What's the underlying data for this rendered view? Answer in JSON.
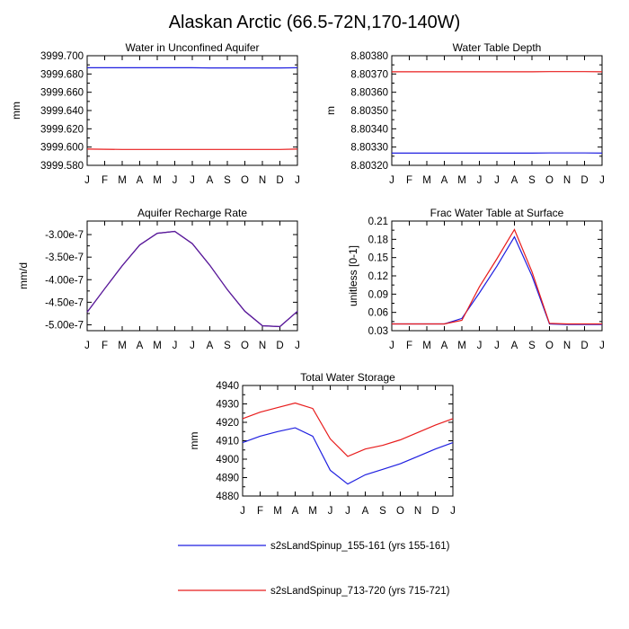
{
  "title": "Alaskan Arctic (66.5-72N,170-140W)",
  "colors": {
    "blue": "#1f1fe0",
    "red": "#e81c1c",
    "purple": "#5a1a9a",
    "axis": "#000000"
  },
  "legend": [
    {
      "label": "s2sLandSpinup_155-161 (yrs 155-161)",
      "color": "#1f1fe0"
    },
    {
      "label": "s2sLandSpinup_713-720 (yrs 715-721)",
      "color": "#e81c1c"
    }
  ],
  "chart_data": [
    {
      "id": "unconfined",
      "type": "line",
      "title": "Water in Unconfined Aquifer",
      "ylabel": "mm",
      "categories": [
        "J",
        "F",
        "M",
        "A",
        "M",
        "J",
        "J",
        "A",
        "S",
        "O",
        "N",
        "D",
        "J"
      ],
      "ylim": [
        3999.58,
        3999.7
      ],
      "yticks": [
        "3999.580",
        "3999.600",
        "3999.620",
        "3999.640",
        "3999.660",
        "3999.680",
        "3999.700"
      ],
      "series": [
        {
          "name": "s2sLandSpinup_155-161 (yrs 155-161)",
          "color": "#1f1fe0",
          "values": [
            3999.6868,
            3999.6868,
            3999.6868,
            3999.6868,
            3999.6868,
            3999.6868,
            3999.6868,
            3999.6866,
            3999.6866,
            3999.6866,
            3999.6866,
            3999.6866,
            3999.6868
          ]
        },
        {
          "name": "s2sLandSpinup_713-720 (yrs 715-721)",
          "color": "#e81c1c",
          "values": [
            3999.5978,
            3999.5976,
            3999.5974,
            3999.5974,
            3999.5974,
            3999.5974,
            3999.5974,
            3999.5974,
            3999.5974,
            3999.5974,
            3999.5974,
            3999.5974,
            3999.5978
          ]
        }
      ]
    },
    {
      "id": "depth",
      "type": "line",
      "title": "Water Table Depth",
      "ylabel": "m",
      "categories": [
        "J",
        "F",
        "M",
        "A",
        "M",
        "J",
        "J",
        "A",
        "S",
        "O",
        "N",
        "D",
        "J"
      ],
      "ylim": [
        8.8032,
        8.8038
      ],
      "yticks": [
        "8.80320",
        "8.80330",
        "8.80340",
        "8.80350",
        "8.80360",
        "8.80370",
        "8.80380"
      ],
      "series": [
        {
          "name": "s2sLandSpinup_155-161 (yrs 155-161)",
          "color": "#1f1fe0",
          "values": [
            8.803267,
            8.803267,
            8.803267,
            8.803267,
            8.803267,
            8.803267,
            8.803267,
            8.803267,
            8.803267,
            8.803268,
            8.803268,
            8.803268,
            8.803267
          ]
        },
        {
          "name": "s2sLandSpinup_713-720 (yrs 715-721)",
          "color": "#e81c1c",
          "values": [
            8.803712,
            8.803712,
            8.803712,
            8.803712,
            8.803712,
            8.803712,
            8.803712,
            8.803712,
            8.803712,
            8.803713,
            8.803713,
            8.803713,
            8.803712
          ]
        }
      ]
    },
    {
      "id": "recharge",
      "type": "line",
      "title": "Aquifer Recharge Rate",
      "ylabel": "mm/d",
      "categories": [
        "J",
        "F",
        "M",
        "A",
        "M",
        "J",
        "J",
        "A",
        "S",
        "O",
        "N",
        "D",
        "J"
      ],
      "ylim": [
        -5.13e-07,
        -2.7e-07
      ],
      "yticks": [
        "-5.00e-7",
        "-4.50e-7",
        "-4.00e-7",
        "-3.50e-7",
        "-3.00e-7"
      ],
      "ytick_values": [
        -5e-07,
        -4.5e-07,
        -4e-07,
        -3.5e-07,
        -3e-07
      ],
      "series": [
        {
          "name": "s2sLandSpinup_155-161 (yrs 155-161)",
          "color": "#1f1fe0",
          "values": [
            -4.72e-07,
            -4.2e-07,
            -3.69e-07,
            -3.23e-07,
            -2.97e-07,
            -2.93e-07,
            -3.2e-07,
            -3.68e-07,
            -4.22e-07,
            -4.7e-07,
            -5.02e-07,
            -5.04e-07,
            -4.7e-07
          ]
        },
        {
          "name": "s2sLandSpinup_713-720 (yrs 715-721)",
          "color": "#e81c1c",
          "values": [
            -4.72e-07,
            -4.2e-07,
            -3.69e-07,
            -3.23e-07,
            -2.97e-07,
            -2.93e-07,
            -3.2e-07,
            -3.68e-07,
            -4.22e-07,
            -4.7e-07,
            -5.02e-07,
            -5.04e-07,
            -4.7e-07
          ]
        }
      ]
    },
    {
      "id": "frac",
      "type": "line",
      "title": "Frac Water Table at Surface",
      "ylabel": "unitless [0-1]",
      "categories": [
        "J",
        "F",
        "M",
        "A",
        "M",
        "J",
        "J",
        "A",
        "S",
        "O",
        "N",
        "D",
        "J"
      ],
      "ylim": [
        0.03,
        0.21
      ],
      "yticks": [
        "0.03",
        "0.06",
        "0.09",
        "0.12",
        "0.15",
        "0.18",
        "0.21"
      ],
      "series": [
        {
          "name": "s2sLandSpinup_155-161 (yrs 155-161)",
          "color": "#1f1fe0",
          "values": [
            0.041,
            0.041,
            0.041,
            0.041,
            0.05,
            0.092,
            0.136,
            0.184,
            0.12,
            0.041,
            0.04,
            0.04,
            0.04
          ]
        },
        {
          "name": "s2sLandSpinup_713-720 (yrs 715-721)",
          "color": "#e81c1c",
          "values": [
            0.041,
            0.041,
            0.041,
            0.041,
            0.047,
            0.102,
            0.148,
            0.196,
            0.127,
            0.042,
            0.041,
            0.041,
            0.041
          ]
        }
      ]
    },
    {
      "id": "storage",
      "type": "line",
      "title": "Total Water Storage",
      "ylabel": "mm",
      "categories": [
        "J",
        "F",
        "M",
        "A",
        "M",
        "J",
        "J",
        "A",
        "S",
        "O",
        "N",
        "D",
        "J"
      ],
      "ylim": [
        4880,
        4940
      ],
      "yticks": [
        "4880",
        "4890",
        "4900",
        "4910",
        "4920",
        "4930",
        "4940"
      ],
      "series": [
        {
          "name": "s2sLandSpinup_155-161 (yrs 155-161)",
          "color": "#1f1fe0",
          "values": [
            4909,
            4912.5,
            4915,
            4917,
            4912.5,
            4894,
            4886.5,
            4891.5,
            4894.5,
            4897.5,
            4901.5,
            4905.5,
            4909
          ]
        },
        {
          "name": "s2sLandSpinup_713-720 (yrs 715-721)",
          "color": "#e81c1c",
          "values": [
            4922,
            4925.5,
            4928,
            4930.5,
            4927.5,
            4911,
            4901.5,
            4905.5,
            4907.5,
            4910.5,
            4914.5,
            4918.5,
            4922
          ]
        }
      ]
    }
  ]
}
